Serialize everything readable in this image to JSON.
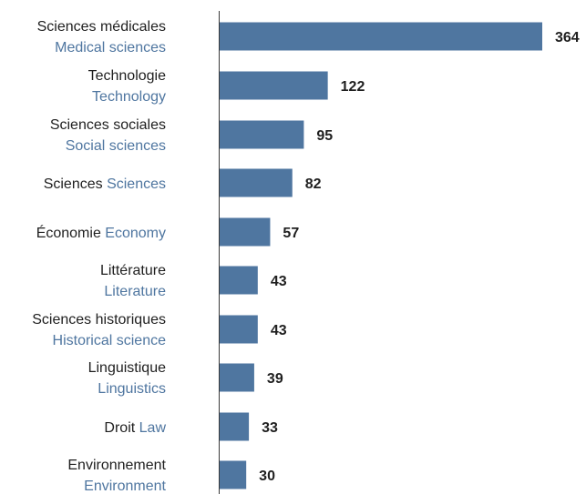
{
  "chart_data": {
    "type": "bar",
    "orientation": "horizontal",
    "title": "",
    "xlabel": "",
    "ylabel": "",
    "xlim": [
      0,
      364
    ],
    "grid": false,
    "bar_color": "#4f76a0",
    "label_fr_color": "#1f1f1f",
    "label_en_color": "#4f76a0",
    "categories": [
      {
        "fr": "Sciences médicales",
        "en": "Medical sciences",
        "inline": false
      },
      {
        "fr": "Technologie",
        "en": "Technology",
        "inline": false
      },
      {
        "fr": "Sciences sociales",
        "en": "Social sciences",
        "inline": false
      },
      {
        "fr": "Sciences",
        "en": "Sciences",
        "inline": true
      },
      {
        "fr": "Économie",
        "en": "Economy",
        "inline": true
      },
      {
        "fr": "Littérature",
        "en": "Literature",
        "inline": false
      },
      {
        "fr": "Sciences historiques",
        "en": "Historical science",
        "inline": false
      },
      {
        "fr": "Linguistique",
        "en": "Linguistics",
        "inline": false
      },
      {
        "fr": "Droit",
        "en": "Law",
        "inline": true
      },
      {
        "fr": "Environnement",
        "en": "Environment",
        "inline": false
      }
    ],
    "values": [
      364,
      122,
      95,
      82,
      57,
      43,
      43,
      39,
      33,
      30
    ]
  }
}
